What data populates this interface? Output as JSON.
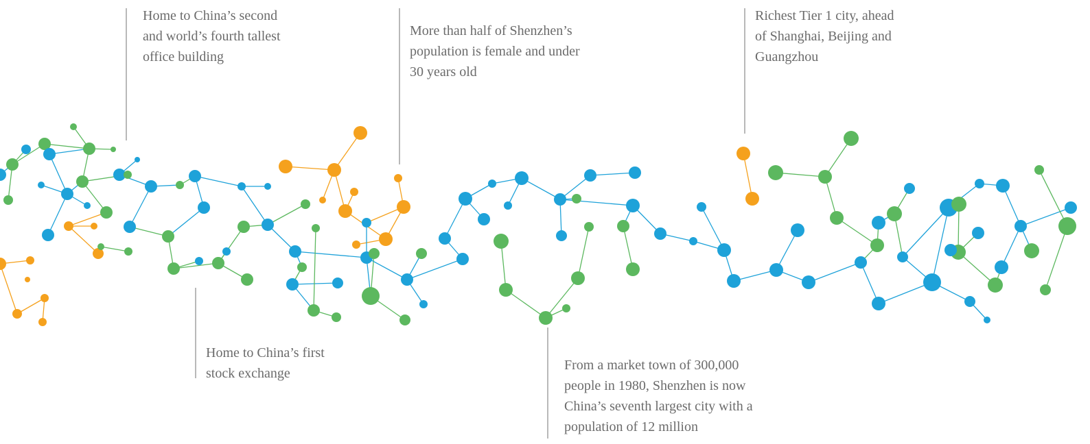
{
  "annotations": [
    {
      "lines": [
        "Home to China’s second",
        "and world’s fourth tallest",
        "office building"
      ]
    },
    {
      "lines": [
        "More than half of Shenzhen’s",
        "population is female and under",
        "30 years old"
      ]
    },
    {
      "lines": [
        "Richest Tier 1 city, ahead",
        "of Shanghai, Beijing and",
        "Guangzhou"
      ]
    },
    {
      "lines": [
        "Home to China’s first",
        "stock exchange"
      ]
    },
    {
      "lines": [
        "From a market town of 300,000",
        "people in 1980, Shenzhen is now",
        "China’s seventh largest city with a",
        "population of 12 million"
      ]
    }
  ]
}
